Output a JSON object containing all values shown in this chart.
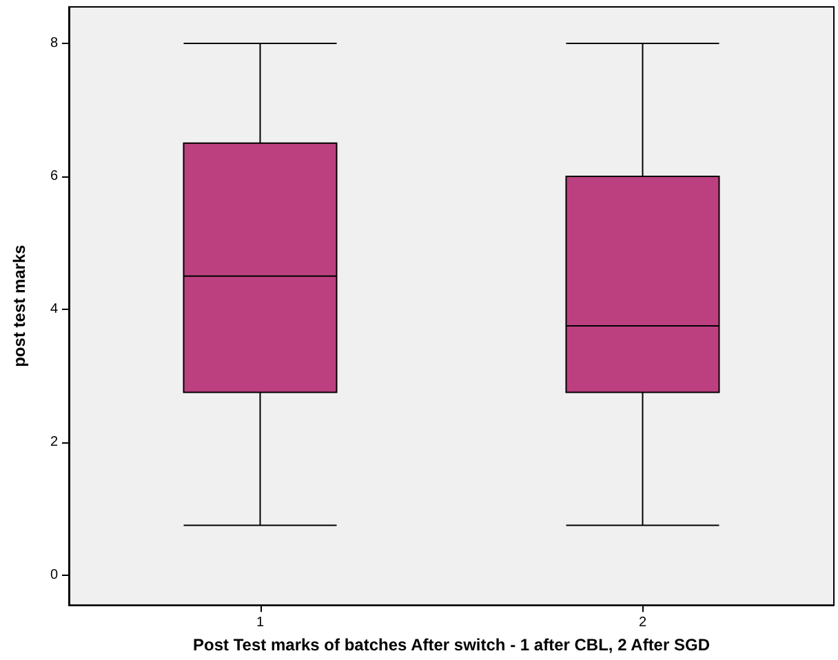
{
  "chart_data": {
    "type": "box",
    "xlabel": "Post Test marks of batches After switch - 1 after CBL, 2 After SGD",
    "ylabel": "post test marks",
    "categories": [
      "1",
      "2"
    ],
    "series": [
      {
        "color": "#bc4080",
        "boxes": [
          {
            "low": 0.75,
            "q1": 2.75,
            "median": 4.5,
            "q3": 6.5,
            "high": 8
          },
          {
            "low": 0.75,
            "q1": 2.75,
            "median": 3.75,
            "q3": 6,
            "high": 8
          }
        ]
      }
    ],
    "ylim": [
      -0.45,
      8.55
    ],
    "yticks": [
      0,
      2,
      4,
      6,
      8
    ],
    "grid": false
  }
}
